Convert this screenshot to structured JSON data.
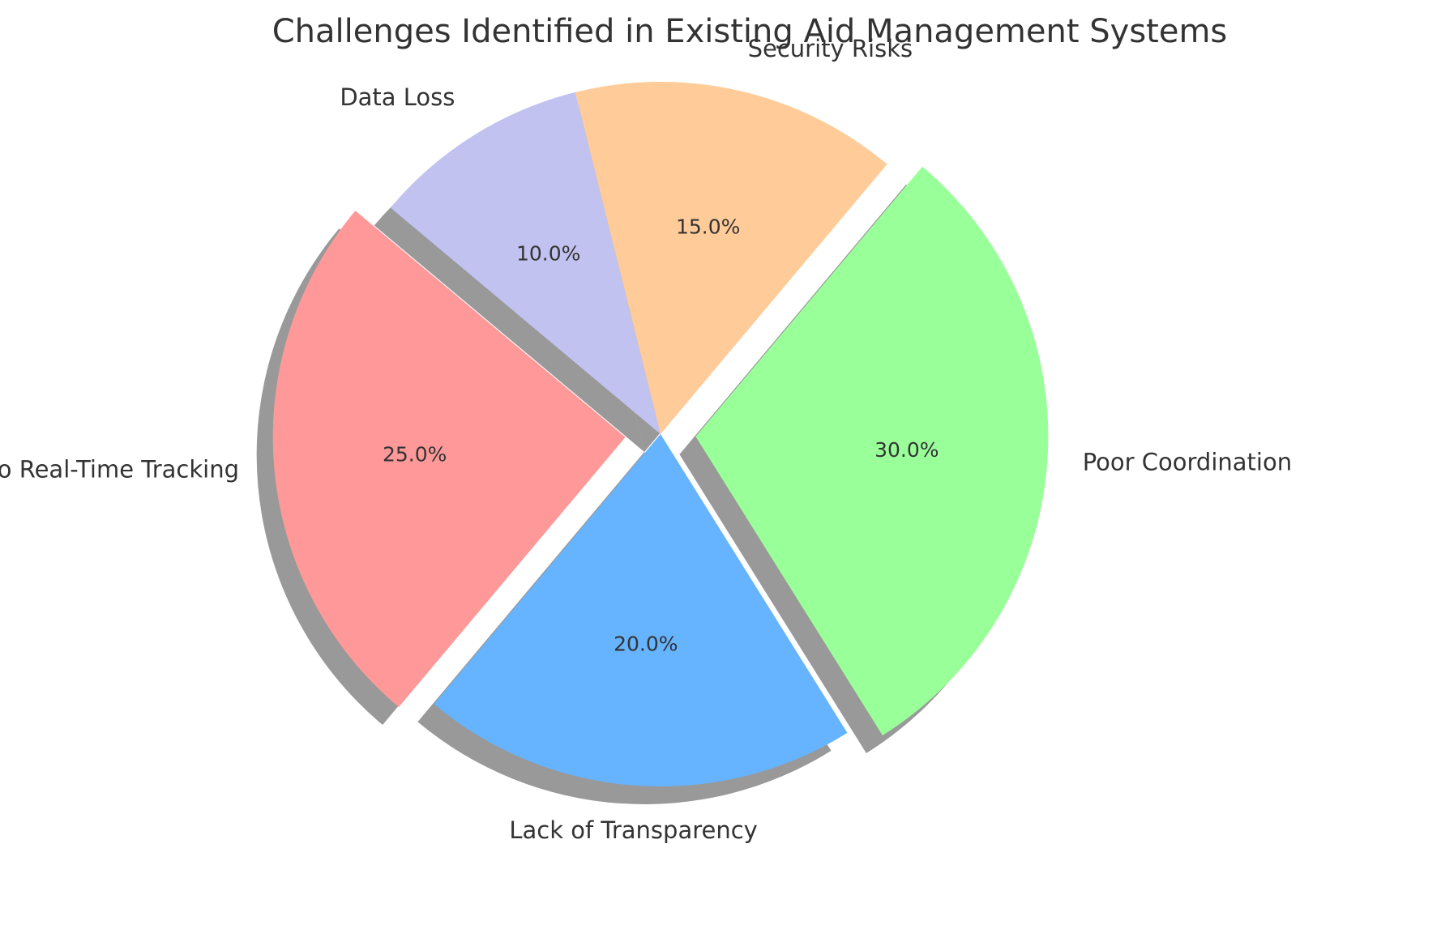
{
  "chart_data": {
    "type": "pie",
    "title": "Challenges Identified in Existing Aid Management Systems",
    "start_angle_deg": 140,
    "direction": "counterclockwise",
    "shadow": true,
    "slices": [
      {
        "label": "No Real-Time Tracking",
        "value": 25.0,
        "pct_label": "25.0%",
        "color": "#ff9999",
        "exploded": true
      },
      {
        "label": "Lack of Transparency",
        "value": 20.0,
        "pct_label": "20.0%",
        "color": "#66b3ff",
        "exploded": false
      },
      {
        "label": "Poor Coordination",
        "value": 30.0,
        "pct_label": "30.0%",
        "color": "#99ff99",
        "exploded": true
      },
      {
        "label": "Security Risks",
        "value": 15.0,
        "pct_label": "15.0%",
        "color": "#ffcc99",
        "exploded": false
      },
      {
        "label": "Data Loss",
        "value": 10.0,
        "pct_label": "10.0%",
        "color": "#c2c2f0",
        "exploded": false
      }
    ]
  }
}
